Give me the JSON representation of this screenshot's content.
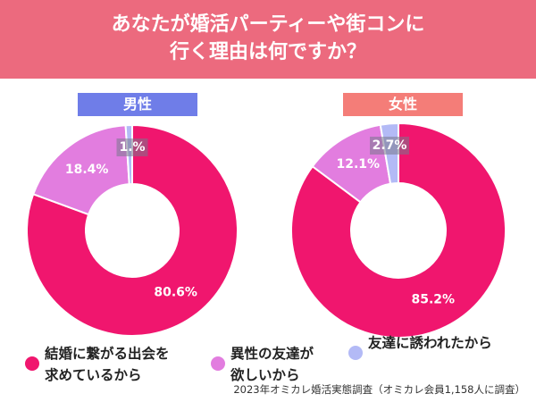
{
  "title_lines": [
    "あなたが婚活パーティーや街コンに",
    "行く理由は何ですか？"
  ],
  "colors": {
    "header": "#ec6a7e",
    "male_badge": "#6f7de8",
    "female_badge": "#f47d78"
  },
  "legend": [
    {
      "lines": [
        "結婚に繋がる出会を",
        "求めているから"
      ],
      "color": "#f0166e"
    },
    {
      "lines": [
        "異性の友達が",
        "欲しいから"
      ],
      "color": "#e27ddf"
    },
    {
      "lines": [
        "友達に誘われたから"
      ],
      "color": "#b3baf6"
    }
  ],
  "source": "2023年オミカレ婚活実態調査（オミカレ会員1,158人に調査）",
  "chart_data": [
    {
      "type": "pie",
      "title": "男性",
      "donut": true,
      "categories": [
        "結婚に繋がる出会を求めているから",
        "異性の友達が欲しいから",
        "友達に誘われたから"
      ],
      "values": [
        80.6,
        18.4,
        1.0
      ],
      "labels": [
        "80.6%",
        "18.4%",
        "1.%"
      ],
      "colors": [
        "#f0166e",
        "#e27ddf",
        "#b3baf6"
      ]
    },
    {
      "type": "pie",
      "title": "女性",
      "donut": true,
      "categories": [
        "結婚に繋がる出会を求めているから",
        "異性の友達が欲しいから",
        "友達に誘われたから"
      ],
      "values": [
        85.2,
        12.1,
        2.7
      ],
      "labels": [
        "85.2%",
        "12.1%",
        "2.7%"
      ],
      "colors": [
        "#f0166e",
        "#e27ddf",
        "#b3baf6"
      ]
    }
  ]
}
